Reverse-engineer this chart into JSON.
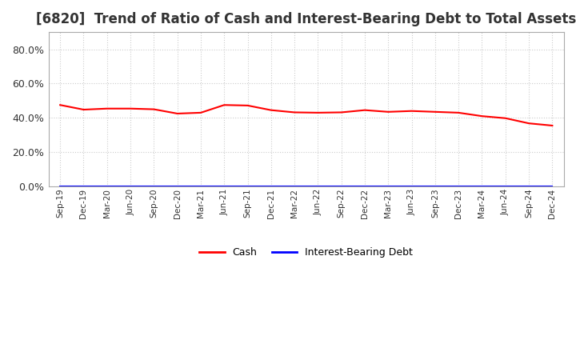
{
  "title": "[6820]  Trend of Ratio of Cash and Interest-Bearing Debt to Total Assets",
  "title_fontsize": 12,
  "background_color": "#ffffff",
  "plot_bg_color": "#ffffff",
  "grid_color": "#cccccc",
  "ylim": [
    0,
    0.9
  ],
  "yticks": [
    0.0,
    0.2,
    0.4,
    0.6,
    0.8
  ],
  "ytick_labels": [
    "0.0%",
    "20.0%",
    "40.0%",
    "60.0%",
    "80.0%"
  ],
  "x_labels": [
    "Sep-19",
    "Dec-19",
    "Mar-20",
    "Jun-20",
    "Sep-20",
    "Dec-20",
    "Mar-21",
    "Jun-21",
    "Sep-21",
    "Dec-21",
    "Mar-22",
    "Jun-22",
    "Sep-22",
    "Dec-22",
    "Mar-23",
    "Jun-23",
    "Sep-23",
    "Dec-23",
    "Mar-24",
    "Jun-24",
    "Sep-24",
    "Dec-24"
  ],
  "cash": [
    0.475,
    0.448,
    0.454,
    0.454,
    0.45,
    0.425,
    0.43,
    0.475,
    0.472,
    0.445,
    0.432,
    0.43,
    0.432,
    0.445,
    0.435,
    0.44,
    0.435,
    0.43,
    0.41,
    0.398,
    0.368,
    0.355
  ],
  "interest_bearing_debt": [
    0.0,
    0.0,
    0.0,
    0.0,
    0.0,
    0.0,
    0.0,
    0.0,
    0.0,
    0.0,
    0.0,
    0.0,
    0.0,
    0.0,
    0.0,
    0.0,
    0.0,
    0.0,
    0.0,
    0.0,
    0.0,
    0.0
  ],
  "cash_color": "#ff0000",
  "debt_color": "#0000ff",
  "cash_label": "Cash",
  "debt_label": "Interest-Bearing Debt"
}
